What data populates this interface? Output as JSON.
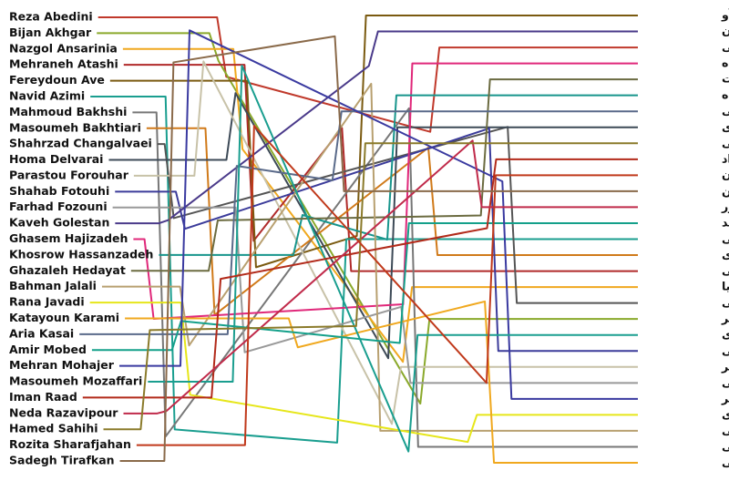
{
  "left_names": [
    "Reza Abedini",
    "Bijan Akhgar",
    "Nazgol Ansarinia",
    "Mehraneh Atashi",
    "Fereydoun Ave",
    "Navid Azimi",
    "Mahmoud Bakhshi",
    "Masoumeh Bakhtiari",
    "Shahrzad Changalvaei",
    "Homa Delvarai",
    "Parastou Forouhar",
    "Shahab Fotouhi",
    "Farhad Fozouni",
    "Kaveh Golestan",
    "Ghasem Hajizadeh",
    "Khosrow Hassanzadeh",
    "Ghazaleh Hedayat",
    "Bahman Jalali",
    "Rana Javadi",
    "Katayoun Karami",
    "Aria Kasai",
    "Amir Mobed",
    "Mehran Mohajer",
    "Masoumeh Mozaffari",
    "Iman Raad",
    "Neda Razavipour",
    "Hamed Sahihi",
    "Rozita Sharafjahan",
    "Sadegh Tirafkan"
  ],
  "right_names": [
    "فریدون آو",
    "کاوه گلستان",
    "رضا عابدینی",
    "قاسم حاجی‌زاده",
    "غزاله هدایت",
    "خسرو حسن‌زاده",
    "آریا کسایی",
    "هما دلورای",
    "حامد صحیحی",
    "ایمان راد",
    "رزیتا شرف‌جهان",
    "صادق تیرافکن",
    "ندا رضوی‌پور",
    "امیر معبد",
    "نوید عظیمی",
    "معصومه بختیاری",
    "مهرانه آتشی",
    "نازگل انصاری‌نیا",
    "شهرزاد چنگلوایی",
    "بیژن اخگر",
    "معصومه مظفری",
    "شهاب فتوحی",
    "پرستو فروهر",
    "فرهاد فزونی",
    "مهران مهاجر",
    "رعنا جوادی",
    "بهمن جلالی",
    "محمود بخشی",
    "کتایون کرمی"
  ]
}
